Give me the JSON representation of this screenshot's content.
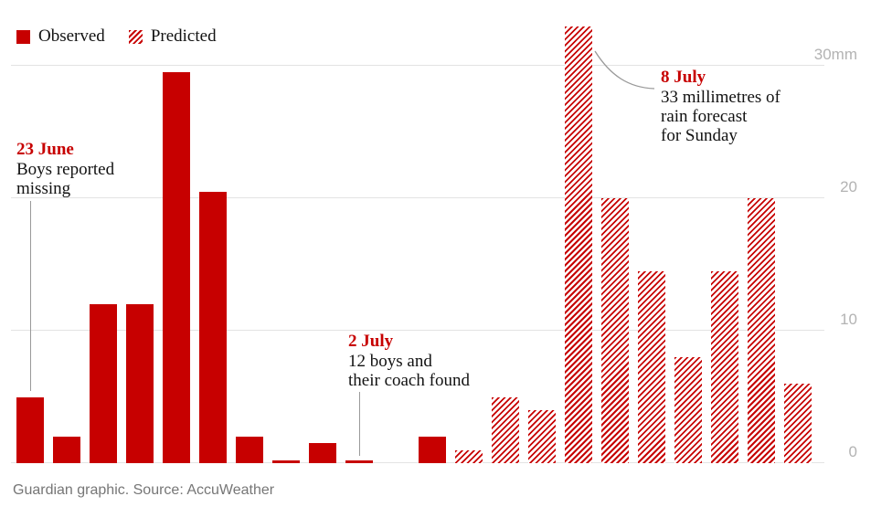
{
  "colors": {
    "red": "#c70000",
    "text": "#121212",
    "axis_label": "#b3b3b3",
    "gridline": "#e3e3e3",
    "pointer": "#999999",
    "footer": "#767676",
    "background": "#ffffff"
  },
  "chart_data": {
    "type": "bar",
    "unit": "mm",
    "y_axis": {
      "ticks": [
        {
          "value": 0,
          "label": "0"
        },
        {
          "value": 10,
          "label": "10"
        },
        {
          "value": 20,
          "label": "20"
        },
        {
          "value": 30,
          "label": "30mm"
        }
      ],
      "range": [
        0,
        33
      ],
      "gridlines": true,
      "labels_position": "right"
    },
    "legend": [
      {
        "name": "Observed",
        "style": "solid"
      },
      {
        "name": "Predicted",
        "style": "hatched"
      }
    ],
    "bars": [
      {
        "label": "23 June",
        "series": "observed",
        "value": 5
      },
      {
        "label": "",
        "series": "observed",
        "value": 2
      },
      {
        "label": "",
        "series": "observed",
        "value": 12
      },
      {
        "label": "",
        "series": "observed",
        "value": 12
      },
      {
        "label": "",
        "series": "observed",
        "value": 29.5
      },
      {
        "label": "",
        "series": "observed",
        "value": 20.5
      },
      {
        "label": "",
        "series": "observed",
        "value": 2
      },
      {
        "label": "",
        "series": "observed",
        "value": 0.2
      },
      {
        "label": "",
        "series": "observed",
        "value": 1.5
      },
      {
        "label": "2 July",
        "series": "observed",
        "value": 0.2
      },
      {
        "label": "",
        "series": "observed",
        "value": 0
      },
      {
        "label": "",
        "series": "observed",
        "value": 2
      },
      {
        "label": "",
        "series": "predicted",
        "value": 1
      },
      {
        "label": "",
        "series": "predicted",
        "value": 5
      },
      {
        "label": "",
        "series": "predicted",
        "value": 4
      },
      {
        "label": "8 July",
        "series": "predicted",
        "value": 33
      },
      {
        "label": "",
        "series": "predicted",
        "value": 20
      },
      {
        "label": "",
        "series": "predicted",
        "value": 14.5
      },
      {
        "label": "",
        "series": "predicted",
        "value": 8
      },
      {
        "label": "",
        "series": "predicted",
        "value": 14.5
      },
      {
        "label": "",
        "series": "predicted",
        "value": 20
      },
      {
        "label": "",
        "series": "predicted",
        "value": 6
      }
    ],
    "annotations": [
      {
        "date": "23 June",
        "lines": [
          "Boys reported",
          "missing"
        ],
        "points_to_bar": 1
      },
      {
        "date": "2 July",
        "lines": [
          "12 boys and",
          "their coach found"
        ],
        "points_to_bar": 10
      },
      {
        "date": "8 July",
        "lines": [
          "33 millimetres of",
          "rain forecast",
          "for Sunday"
        ],
        "points_to_bar": 16
      }
    ],
    "source": "Guardian graphic. Source: AccuWeather"
  }
}
